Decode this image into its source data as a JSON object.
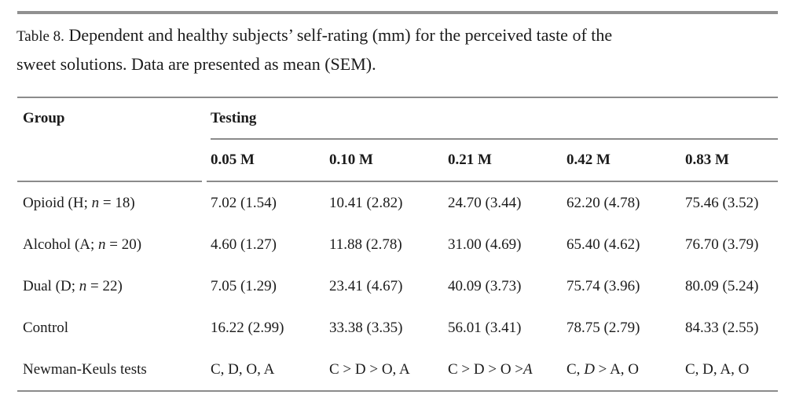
{
  "caption": {
    "label": "Table 8.",
    "line1": "Dependent and healthy subjects’ self-rating (mm) for the perceived taste of the",
    "line2": "sweet solutions. Data are presented as mean (SEM)."
  },
  "table": {
    "stub_header": "Group",
    "span_header": "Testing",
    "columns": [
      "0.05 M",
      "0.10 M",
      "0.21 M",
      "0.42 M",
      "0.83 M"
    ],
    "rows": [
      {
        "label_pre": "Opioid (H; ",
        "label_it": "n",
        "label_post": " = 18)",
        "cells": [
          "7.02 (1.54)",
          "10.41 (2.82)",
          "24.70 (3.44)",
          "62.20 (4.78)",
          "75.46 (3.52)"
        ]
      },
      {
        "label_pre": "Alcohol (A; ",
        "label_it": "n",
        "label_post": " = 20)",
        "cells": [
          "4.60 (1.27)",
          "11.88 (2.78)",
          "31.00 (4.69)",
          "65.40 (4.62)",
          "76.70 (3.79)"
        ]
      },
      {
        "label_pre": "Dual (D; ",
        "label_it": "n",
        "label_post": " = 22)",
        "cells": [
          "7.05 (1.29)",
          "23.41 (4.67)",
          "40.09 (3.73)",
          "75.74 (3.96)",
          "80.09 (5.24)"
        ]
      },
      {
        "label_pre": "Control",
        "label_it": "",
        "label_post": "",
        "cells": [
          "16.22 (2.99)",
          "33.38 (3.35)",
          "56.01 (3.41)",
          "78.75 (2.79)",
          "84.33 (2.55)"
        ]
      }
    ],
    "nk_row": {
      "label": "Newman-Keuls tests",
      "cells": [
        {
          "pre": "C, D, O, A",
          "it": "",
          "post": ""
        },
        {
          "pre": "C > D > O, A",
          "it": "",
          "post": ""
        },
        {
          "pre": "C > D > O >",
          "it": "A",
          "post": ""
        },
        {
          "pre": "C, ",
          "it": "D",
          "post": " > A, O"
        },
        {
          "pre": "C, D, A, O",
          "it": "",
          "post": ""
        }
      ]
    }
  },
  "colors": {
    "rule_gray": "#8b8b8b",
    "text": "#1b1b1b"
  }
}
